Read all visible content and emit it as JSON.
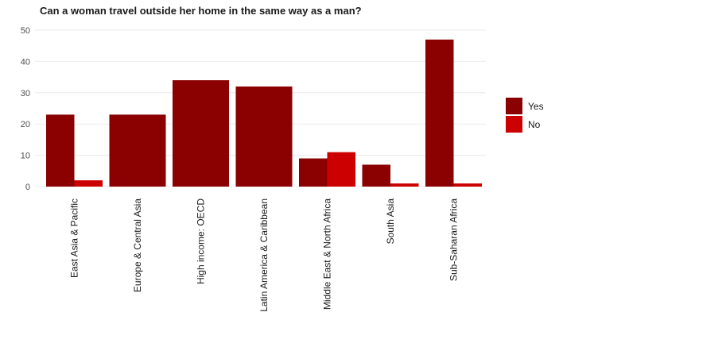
{
  "chart_data": {
    "type": "bar",
    "title": "Can a woman travel outside her home in the same way as a man?",
    "categories": [
      "East Asia & Pacific",
      "Europe & Central Asia",
      "High income: OECD",
      "Latin America & Caribbean",
      "Middle East & North Africa",
      "South Asia",
      "Sub-Saharan Africa"
    ],
    "series": [
      {
        "name": "Yes",
        "color": "#8b0000",
        "values": [
          23,
          23,
          34,
          32,
          9,
          7,
          47
        ]
      },
      {
        "name": "No",
        "color": "#cc0000",
        "values": [
          2,
          0,
          0,
          0,
          11,
          1,
          1
        ]
      }
    ],
    "ylim": [
      0,
      50
    ],
    "yticks": [
      0,
      10,
      20,
      30,
      40,
      50
    ],
    "grid": true,
    "legend_position": "right"
  }
}
